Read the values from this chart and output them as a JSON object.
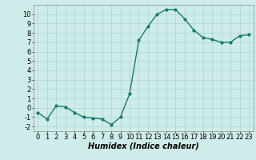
{
  "x": [
    0,
    1,
    2,
    3,
    4,
    5,
    6,
    7,
    8,
    9,
    10,
    11,
    12,
    13,
    14,
    15,
    16,
    17,
    18,
    19,
    20,
    21,
    22,
    23
  ],
  "y": [
    -0.5,
    -1.2,
    0.2,
    0.1,
    -0.5,
    -1.0,
    -1.1,
    -1.2,
    -1.8,
    -1.0,
    1.5,
    7.2,
    8.7,
    10.0,
    10.5,
    10.5,
    9.5,
    8.3,
    7.5,
    7.3,
    7.0,
    7.0,
    7.7,
    7.8
  ],
  "line_color": "#1a7a6e",
  "marker": "o",
  "marker_size": 2.0,
  "linewidth": 1.0,
  "bg_color": "#ceecea",
  "grid_color": "#b0d8d4",
  "xlabel": "Humidex (Indice chaleur)",
  "xlabel_fontsize": 7,
  "tick_fontsize": 6,
  "xlim": [
    -0.5,
    23.5
  ],
  "ylim": [
    -2.5,
    11.0
  ],
  "yticks": [
    -2,
    -1,
    0,
    1,
    2,
    3,
    4,
    5,
    6,
    7,
    8,
    9,
    10
  ],
  "xticks": [
    0,
    1,
    2,
    3,
    4,
    5,
    6,
    7,
    8,
    9,
    10,
    11,
    12,
    13,
    14,
    15,
    16,
    17,
    18,
    19,
    20,
    21,
    22,
    23
  ]
}
